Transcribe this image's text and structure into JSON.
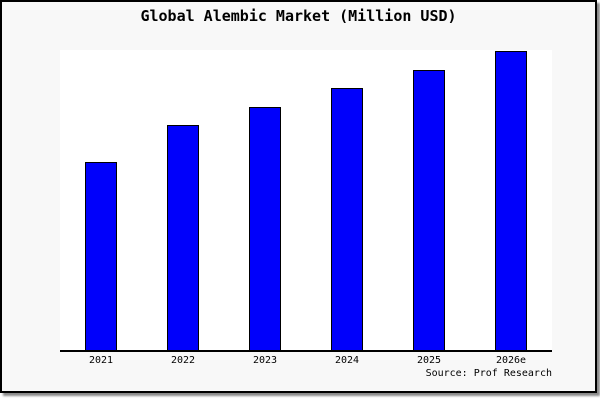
{
  "title": "Global Alembic Market (Million USD)",
  "source_caption": "Source: Prof Research",
  "colors": {
    "bar_fill": "#0000fb",
    "bar_border": "#000000",
    "axis": "#000000",
    "frame_background": "#f8f8f8",
    "plot_background": "#ffffff",
    "frame_border": "#000000",
    "shadow": "#8a8a8a",
    "text": "#000000"
  },
  "chart_data": {
    "type": "bar",
    "title": "Global Alembic Market (Million USD)",
    "categories": [
      "2021",
      "2022",
      "2023",
      "2024",
      "2025",
      "2026e"
    ],
    "values": [
      62.9,
      75.2,
      81.5,
      87.7,
      93.7,
      100
    ],
    "value_unit": "relative bar height, % of tallest bar (no numeric y-axis shown in image)",
    "xlabel": "",
    "ylabel": "",
    "grid": false,
    "legend": false,
    "y_axis_shown": false,
    "annotation": "Source: Prof Research"
  }
}
